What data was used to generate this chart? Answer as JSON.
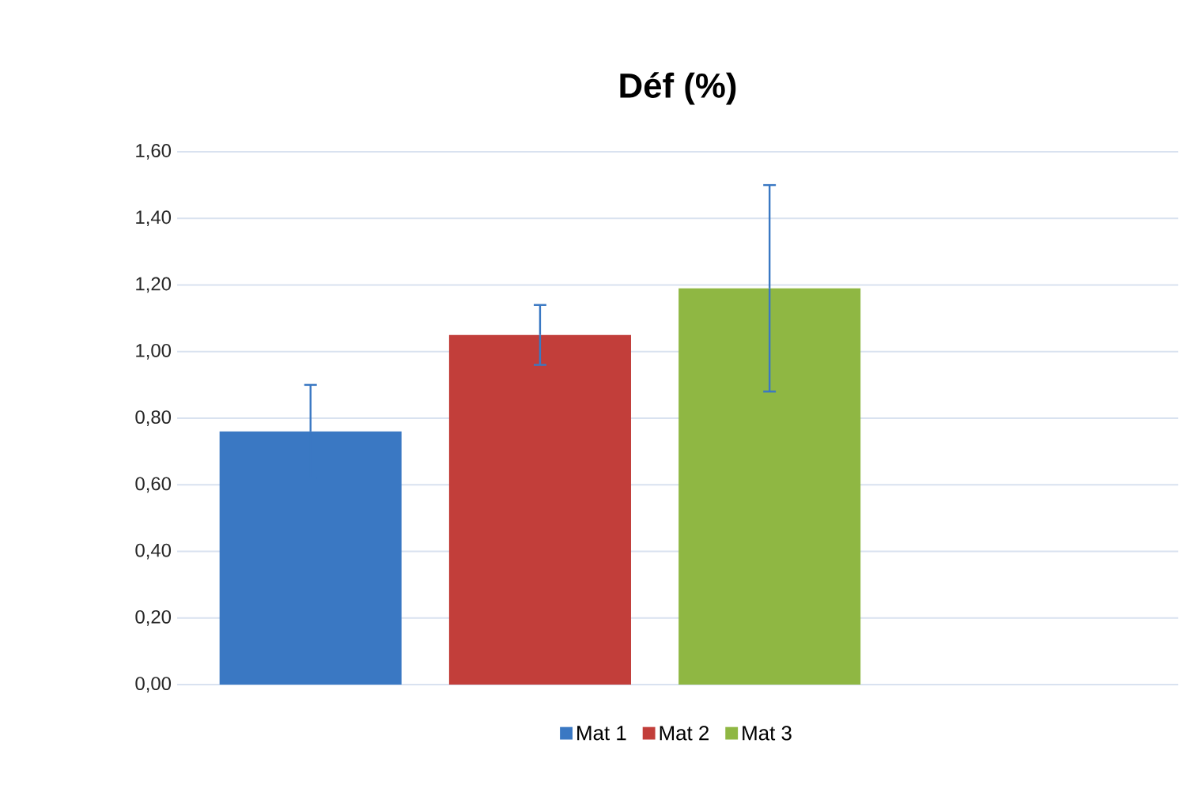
{
  "chart_data": {
    "type": "bar",
    "title": "Déf (%)",
    "categories": [
      null
    ],
    "series": [
      {
        "name": "Mat 1",
        "color": "#3a78c3",
        "values": [
          0.76
        ],
        "errors": [
          0.14
        ]
      },
      {
        "name": "Mat 2",
        "color": "#c23e3a",
        "values": [
          1.05
        ],
        "errors": [
          0.09
        ]
      },
      {
        "name": "Mat 3",
        "color": "#8fb743",
        "values": [
          1.19
        ],
        "errors": [
          0.31
        ]
      }
    ],
    "ylim": [
      0,
      1.6
    ],
    "yticks": [
      {
        "value": 0,
        "label": "0,00"
      },
      {
        "value": 0.2,
        "label": "0,20"
      },
      {
        "value": 0.4,
        "label": "0,40"
      },
      {
        "value": 0.6,
        "label": "0,60"
      },
      {
        "value": 0.8,
        "label": "0,80"
      },
      {
        "value": 1.0,
        "label": "1,00"
      },
      {
        "value": 1.2,
        "label": "1,20"
      },
      {
        "value": 1.4,
        "label": "1,40"
      },
      {
        "value": 1.6,
        "label": "1,60"
      }
    ],
    "grid": "y",
    "legend": "bottom"
  }
}
